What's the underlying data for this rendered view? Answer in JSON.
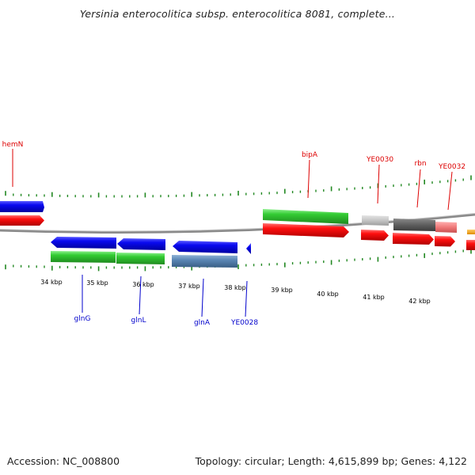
{
  "title": "Yersinia enterocolitica subsp. enterocolitica 8081, complete...",
  "footer": {
    "accession": "Accession: NC_008800",
    "summary": "Topology: circular; Length: 4,615,899 bp; Genes: 4,122"
  },
  "colors": {
    "forward_label": "#dd0000",
    "reverse_label": "#0000cc",
    "ticks": "#228822",
    "backbone": "#777777"
  },
  "kbp_labels": [
    "34 kbp",
    "35 kbp",
    "36 kbp",
    "37 kbp",
    "38 kbp",
    "39 kbp",
    "40 kbp",
    "41 kbp",
    "42 kbp"
  ],
  "forward_genes": [
    {
      "name": "hemN",
      "label_color": "#dd0000"
    },
    {
      "name": "bipA",
      "label_color": "#dd0000"
    },
    {
      "name": "YE0030",
      "label_color": "#dd0000"
    },
    {
      "name": "rbn",
      "label_color": "#dd0000"
    },
    {
      "name": "YE0032",
      "label_color": "#dd0000"
    }
  ],
  "reverse_genes": [
    {
      "name": "glnG",
      "label_color": "#0000cc"
    },
    {
      "name": "glnL",
      "label_color": "#0000cc"
    },
    {
      "name": "glnA",
      "label_color": "#0000cc"
    },
    {
      "name": "YE0028",
      "label_color": "#0000cc"
    }
  ]
}
